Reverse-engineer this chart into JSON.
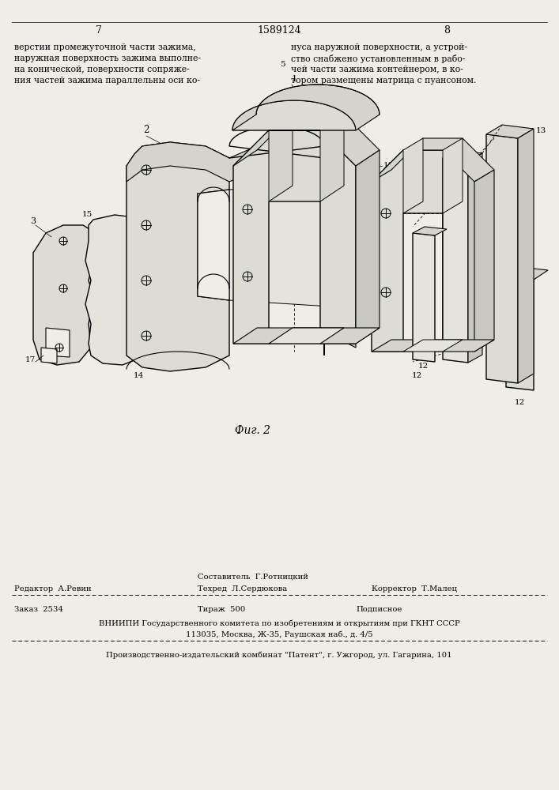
{
  "bg_color": "#f0ede8",
  "page_num_left": "7",
  "page_num_center": "1589124",
  "page_num_right": "8",
  "text_left_col": [
    "верстии промежуточной части зажима,",
    "наружная поверхность зажима выполне-",
    "на конической, поверхности сопряже-",
    "ния частей зажима параллельны оси ко-"
  ],
  "text_right_col": [
    "нуса наружной поверхности, а устрой-",
    "ство снабжено установленным в рабо-",
    "чей части зажима контейнером, в ко-",
    "тором размещены матрица с пуансоном."
  ],
  "fig_caption": "Фиг. 2",
  "footer_vniiipi_line1": "ВНИИПИ Государственного комитета по изобретениям и открытиям при ГКНТ СССР",
  "footer_vniiipi_line2": "113035, Москва, Ж-35, Раушская наб., д. 4/5",
  "footer_proizv": "Производственно-издательский комбинат \"Патент\", г. Ужгород, ул. Гагарина, 101"
}
